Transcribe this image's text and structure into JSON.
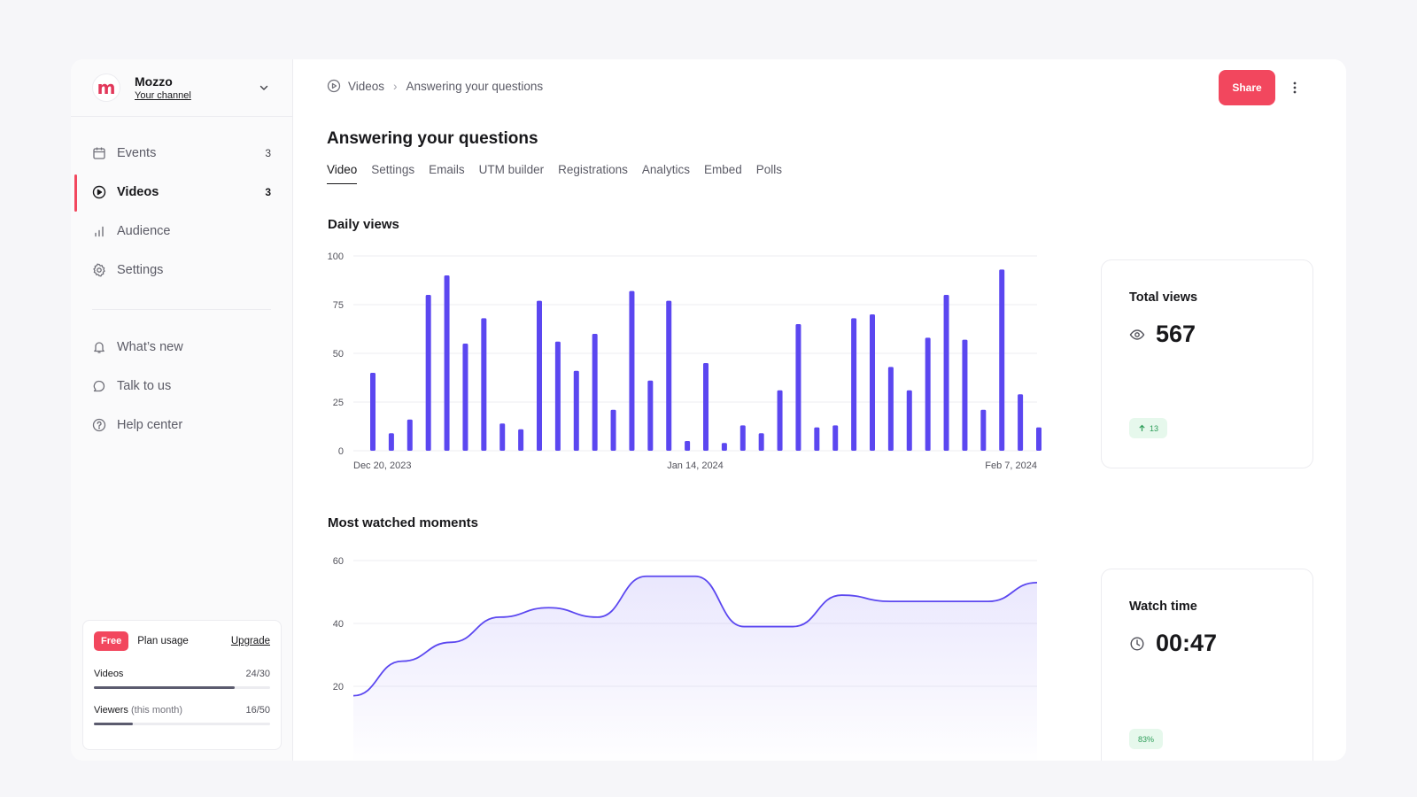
{
  "brand": {
    "logo_letter": "m",
    "name": "Mozzo",
    "subtitle": "Your channel"
  },
  "nav": {
    "items": [
      {
        "label": "Events",
        "count": "3",
        "icon": "calendar-icon"
      },
      {
        "label": "Videos",
        "count": "3",
        "icon": "play-circle-icon",
        "active": true
      },
      {
        "label": "Audience",
        "count": "",
        "icon": "bar-chart-icon"
      },
      {
        "label": "Settings",
        "count": "",
        "icon": "gear-icon"
      }
    ],
    "secondary": [
      {
        "label": "What’s new",
        "icon": "bell-icon"
      },
      {
        "label": "Talk to us",
        "icon": "chat-bubble-icon"
      },
      {
        "label": "Help center",
        "icon": "help-circle-icon"
      }
    ]
  },
  "plan": {
    "badge": "Free",
    "title": "Plan usage",
    "upgrade": "Upgrade",
    "videos": {
      "label": "Videos",
      "value": "24/30",
      "fraction": 0.8
    },
    "viewers": {
      "label": "Viewers",
      "note": "(this month)",
      "value": "16/50",
      "fraction": 0.22
    }
  },
  "breadcrumb": {
    "root": "Videos",
    "separator": "›",
    "current": "Answering your questions"
  },
  "header": {
    "share_label": "Share"
  },
  "page": {
    "title": "Answering your questions"
  },
  "tabs": [
    "Video",
    "Settings",
    "Emails",
    "UTM builder",
    "Registrations",
    "Analytics",
    "Embed",
    "Polls"
  ],
  "sections": {
    "daily_views": "Daily views",
    "most_watched": "Most watched moments"
  },
  "stats": {
    "total_views": {
      "label": "Total views",
      "value": "567",
      "change": "13",
      "icon": "eye-icon"
    },
    "watch_time": {
      "label": "Watch time",
      "value": "00:47",
      "change": "83%",
      "icon": "clock-icon"
    }
  },
  "colors": {
    "accent": "#f2475e",
    "bar": "#5b47f0",
    "line": "#5b47f0"
  },
  "chart_data": [
    {
      "type": "bar",
      "title": "Daily views",
      "x_tick_labels": [
        "Dec 20, 2023",
        "Jan 14, 2024",
        "Feb 7, 2024"
      ],
      "y_ticks": [
        0,
        25,
        50,
        75,
        100
      ],
      "ylim": [
        0,
        100
      ],
      "grid": true,
      "values": [
        40,
        9,
        16,
        80,
        90,
        55,
        68,
        14,
        11,
        77,
        56,
        41,
        60,
        21,
        82,
        36,
        77,
        5,
        45,
        4,
        13,
        9,
        31,
        65,
        12,
        13,
        68,
        70,
        43,
        31,
        58,
        80,
        57,
        21,
        93,
        29,
        12
      ]
    },
    {
      "type": "area",
      "title": "Most watched moments",
      "y_ticks": [
        20,
        40,
        60
      ],
      "ylim": [
        0,
        60
      ],
      "grid": true,
      "values": [
        17,
        28,
        34,
        42,
        45,
        42,
        55,
        55,
        39,
        39,
        49,
        47,
        47,
        47,
        53
      ]
    }
  ]
}
